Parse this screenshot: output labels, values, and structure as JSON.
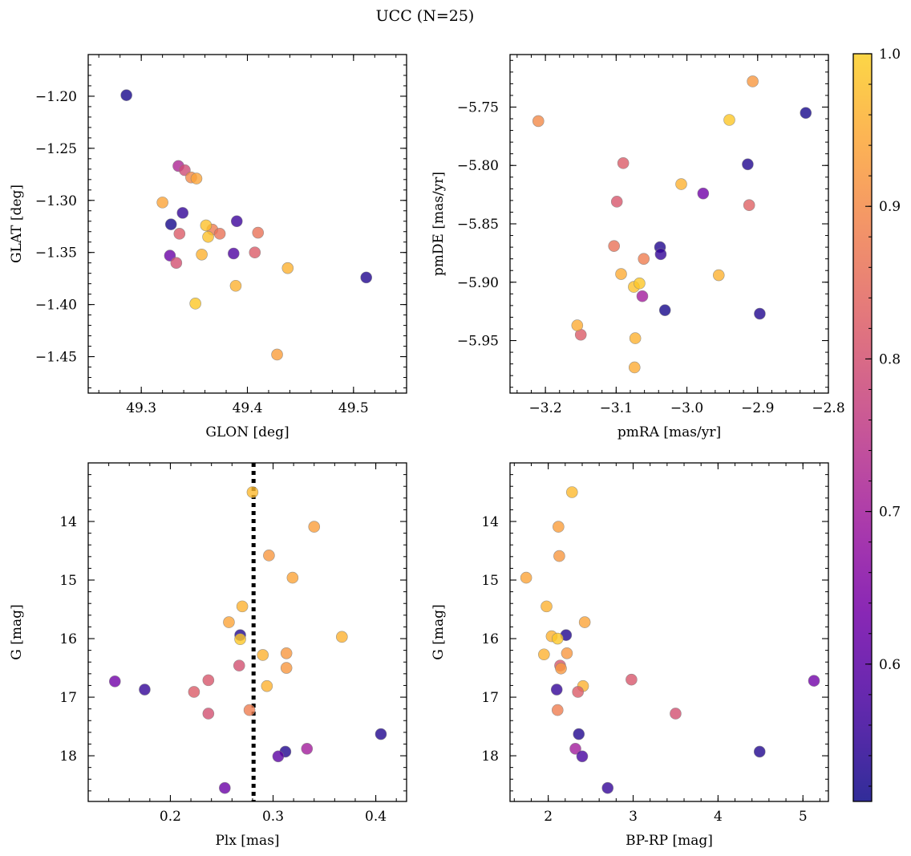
{
  "figure": {
    "suptitle": "UCC (N=25)"
  },
  "colorbar": {
    "ticks": [
      0.6,
      0.7,
      0.8,
      0.9,
      1.0
    ],
    "tick_labels": [
      "0.6",
      "0.7",
      "0.8",
      "0.9",
      "1.0"
    ],
    "range": [
      0.51,
      1.0
    ],
    "colormap": "plasma",
    "colormap_range": [
      0.0,
      0.9
    ],
    "colormap_stops": [
      "#0d0887",
      "#46039f",
      "#7201a8",
      "#9c179e",
      "#bd3786",
      "#d8576b",
      "#ed7953",
      "#fb9f3a",
      "#fdca26",
      "#f0f921"
    ],
    "marker_alpha": 0.8,
    "marker_edge_color": "#808080"
  },
  "dashed_line": {
    "color": "#000000",
    "style": "dotted"
  },
  "chart_data": [
    {
      "type": "scatter",
      "name": "glon-glat",
      "title": "",
      "xlabel": "GLON [deg]",
      "ylabel": "GLAT [deg]",
      "xlim": [
        49.25,
        49.55
      ],
      "ylim": [
        -1.485,
        -1.16
      ],
      "y_inverted": false,
      "xticks": [
        49.3,
        49.4,
        49.5
      ],
      "xtick_labels": [
        "49.3",
        "49.4",
        "49.5"
      ],
      "yticks": [
        -1.45,
        -1.4,
        -1.35,
        -1.3,
        -1.25,
        -1.2
      ],
      "ytick_labels": [
        "−1.45",
        "−1.40",
        "−1.35",
        "−1.30",
        "−1.25",
        "−1.20"
      ],
      "points": [
        {
          "x": 49.286,
          "y": -1.199,
          "c": 0.52
        },
        {
          "x": 49.512,
          "y": -1.374,
          "c": 0.53
        },
        {
          "x": 49.328,
          "y": -1.323,
          "c": 0.52
        },
        {
          "x": 49.339,
          "y": -1.312,
          "c": 0.55
        },
        {
          "x": 49.39,
          "y": -1.32,
          "c": 0.56
        },
        {
          "x": 49.387,
          "y": -1.351,
          "c": 0.58
        },
        {
          "x": 49.327,
          "y": -1.353,
          "c": 0.62
        },
        {
          "x": 49.335,
          "y": -1.267,
          "c": 0.72
        },
        {
          "x": 49.341,
          "y": -1.271,
          "c": 0.79
        },
        {
          "x": 49.333,
          "y": -1.36,
          "c": 0.8
        },
        {
          "x": 49.336,
          "y": -1.332,
          "c": 0.82
        },
        {
          "x": 49.407,
          "y": -1.35,
          "c": 0.82
        },
        {
          "x": 49.41,
          "y": -1.331,
          "c": 0.86
        },
        {
          "x": 49.367,
          "y": -1.328,
          "c": 0.88
        },
        {
          "x": 49.374,
          "y": -1.332,
          "c": 0.86
        },
        {
          "x": 49.347,
          "y": -1.278,
          "c": 0.9
        },
        {
          "x": 49.352,
          "y": -1.279,
          "c": 0.94
        },
        {
          "x": 49.32,
          "y": -1.302,
          "c": 0.94
        },
        {
          "x": 49.357,
          "y": -1.352,
          "c": 0.96
        },
        {
          "x": 49.361,
          "y": -1.324,
          "c": 0.98
        },
        {
          "x": 49.363,
          "y": -1.335,
          "c": 0.98
        },
        {
          "x": 49.389,
          "y": -1.382,
          "c": 0.96
        },
        {
          "x": 49.351,
          "y": -1.399,
          "c": 0.99
        },
        {
          "x": 49.438,
          "y": -1.365,
          "c": 0.96
        },
        {
          "x": 49.428,
          "y": -1.448,
          "c": 0.93
        }
      ]
    },
    {
      "type": "scatter",
      "name": "pmra-pmde",
      "title": "",
      "xlabel": "pmRA [mas/yr]",
      "ylabel": "pmDE [mas/yr]",
      "xlim": [
        -3.25,
        -2.8
      ],
      "ylim": [
        -5.995,
        -5.705
      ],
      "y_inverted": false,
      "xticks": [
        -3.2,
        -3.1,
        -3.0,
        -2.9,
        -2.8
      ],
      "xtick_labels": [
        "−3.2",
        "−3.1",
        "−3.0",
        "−2.9",
        "−2.8"
      ],
      "yticks": [
        -5.95,
        -5.9,
        -5.85,
        -5.8,
        -5.75
      ],
      "ytick_labels": [
        "−5.95",
        "−5.90",
        "−5.85",
        "−5.80",
        "−5.75"
      ],
      "points": [
        {
          "x": -2.832,
          "y": -5.755,
          "c": 0.52
        },
        {
          "x": -2.914,
          "y": -5.799,
          "c": 0.53
        },
        {
          "x": -3.038,
          "y": -5.87,
          "c": 0.53
        },
        {
          "x": -3.037,
          "y": -5.876,
          "c": 0.55
        },
        {
          "x": -3.031,
          "y": -5.924,
          "c": 0.52
        },
        {
          "x": -2.897,
          "y": -5.927,
          "c": 0.53
        },
        {
          "x": -2.977,
          "y": -5.824,
          "c": 0.63
        },
        {
          "x": -3.063,
          "y": -5.912,
          "c": 0.7
        },
        {
          "x": -3.09,
          "y": -5.798,
          "c": 0.82
        },
        {
          "x": -3.099,
          "y": -5.831,
          "c": 0.81
        },
        {
          "x": -3.15,
          "y": -5.945,
          "c": 0.82
        },
        {
          "x": -2.912,
          "y": -5.834,
          "c": 0.83
        },
        {
          "x": -3.103,
          "y": -5.869,
          "c": 0.86
        },
        {
          "x": -3.061,
          "y": -5.88,
          "c": 0.88
        },
        {
          "x": -3.21,
          "y": -5.762,
          "c": 0.9
        },
        {
          "x": -2.907,
          "y": -5.728,
          "c": 0.92
        },
        {
          "x": -3.155,
          "y": -5.937,
          "c": 0.95
        },
        {
          "x": -3.093,
          "y": -5.893,
          "c": 0.95
        },
        {
          "x": -3.008,
          "y": -5.816,
          "c": 0.96
        },
        {
          "x": -2.955,
          "y": -5.894,
          "c": 0.96
        },
        {
          "x": -3.073,
          "y": -5.948,
          "c": 0.96
        },
        {
          "x": -3.074,
          "y": -5.973,
          "c": 0.95
        },
        {
          "x": -3.075,
          "y": -5.904,
          "c": 0.98
        },
        {
          "x": -3.067,
          "y": -5.901,
          "c": 0.99
        },
        {
          "x": -2.94,
          "y": -5.761,
          "c": 0.99
        }
      ]
    },
    {
      "type": "scatter",
      "name": "plx-g",
      "title": "",
      "xlabel": "Plx [mas]",
      "ylabel": "G [mag]",
      "xlim": [
        0.12,
        0.43
      ],
      "ylim": [
        18.78,
        13.0
      ],
      "y_inverted": true,
      "vline_x": 0.281,
      "xticks": [
        0.2,
        0.3,
        0.4
      ],
      "xtick_labels": [
        "0.2",
        "0.3",
        "0.4"
      ],
      "yticks": [
        14,
        15,
        16,
        17,
        18
      ],
      "ytick_labels": [
        "14",
        "15",
        "16",
        "17",
        "18"
      ],
      "points": [
        {
          "x": 0.28,
          "y": 13.5,
          "c": 0.97
        },
        {
          "x": 0.34,
          "y": 14.09,
          "c": 0.93
        },
        {
          "x": 0.296,
          "y": 14.58,
          "c": 0.92
        },
        {
          "x": 0.319,
          "y": 14.96,
          "c": 0.94
        },
        {
          "x": 0.27,
          "y": 15.45,
          "c": 0.96
        },
        {
          "x": 0.257,
          "y": 15.72,
          "c": 0.94
        },
        {
          "x": 0.268,
          "y": 15.94,
          "c": 0.53
        },
        {
          "x": 0.268,
          "y": 16.01,
          "c": 0.99
        },
        {
          "x": 0.367,
          "y": 15.97,
          "c": 0.96
        },
        {
          "x": 0.313,
          "y": 16.25,
          "c": 0.92
        },
        {
          "x": 0.29,
          "y": 16.28,
          "c": 0.96
        },
        {
          "x": 0.313,
          "y": 16.5,
          "c": 0.92
        },
        {
          "x": 0.267,
          "y": 16.46,
          "c": 0.8
        },
        {
          "x": 0.237,
          "y": 16.71,
          "c": 0.81
        },
        {
          "x": 0.146,
          "y": 16.73,
          "c": 0.63
        },
        {
          "x": 0.294,
          "y": 16.81,
          "c": 0.96
        },
        {
          "x": 0.175,
          "y": 16.87,
          "c": 0.55
        },
        {
          "x": 0.223,
          "y": 16.91,
          "c": 0.82
        },
        {
          "x": 0.277,
          "y": 17.22,
          "c": 0.88
        },
        {
          "x": 0.237,
          "y": 17.28,
          "c": 0.8
        },
        {
          "x": 0.405,
          "y": 17.63,
          "c": 0.53
        },
        {
          "x": 0.312,
          "y": 17.93,
          "c": 0.53
        },
        {
          "x": 0.333,
          "y": 17.88,
          "c": 0.7
        },
        {
          "x": 0.305,
          "y": 18.01,
          "c": 0.6
        },
        {
          "x": 0.253,
          "y": 18.55,
          "c": 0.62
        }
      ]
    },
    {
      "type": "scatter",
      "name": "bprp-g",
      "title": "",
      "xlabel": "BP-RP [mag]",
      "ylabel": "G [mag]",
      "xlim": [
        1.55,
        5.3
      ],
      "ylim": [
        18.78,
        13.0
      ],
      "y_inverted": true,
      "xticks": [
        2,
        3,
        4,
        5
      ],
      "xtick_labels": [
        "2",
        "3",
        "4",
        "5"
      ],
      "yticks": [
        14,
        15,
        16,
        17,
        18
      ],
      "ytick_labels": [
        "14",
        "15",
        "16",
        "17",
        "18"
      ],
      "points": [
        {
          "x": 2.28,
          "y": 13.5,
          "c": 0.97
        },
        {
          "x": 2.12,
          "y": 14.09,
          "c": 0.93
        },
        {
          "x": 2.13,
          "y": 14.59,
          "c": 0.92
        },
        {
          "x": 1.74,
          "y": 14.96,
          "c": 0.94
        },
        {
          "x": 1.98,
          "y": 15.45,
          "c": 0.96
        },
        {
          "x": 2.43,
          "y": 15.72,
          "c": 0.94
        },
        {
          "x": 2.21,
          "y": 15.94,
          "c": 0.53
        },
        {
          "x": 2.04,
          "y": 15.96,
          "c": 0.96
        },
        {
          "x": 2.11,
          "y": 16.0,
          "c": 0.99
        },
        {
          "x": 1.95,
          "y": 16.27,
          "c": 0.96
        },
        {
          "x": 2.22,
          "y": 16.25,
          "c": 0.92
        },
        {
          "x": 2.14,
          "y": 16.46,
          "c": 0.81
        },
        {
          "x": 2.15,
          "y": 16.51,
          "c": 0.92
        },
        {
          "x": 2.41,
          "y": 16.81,
          "c": 0.96
        },
        {
          "x": 2.98,
          "y": 16.7,
          "c": 0.81
        },
        {
          "x": 5.13,
          "y": 16.72,
          "c": 0.63
        },
        {
          "x": 2.1,
          "y": 16.87,
          "c": 0.55
        },
        {
          "x": 2.35,
          "y": 16.91,
          "c": 0.82
        },
        {
          "x": 2.11,
          "y": 17.22,
          "c": 0.88
        },
        {
          "x": 3.5,
          "y": 17.28,
          "c": 0.8
        },
        {
          "x": 2.36,
          "y": 17.63,
          "c": 0.53
        },
        {
          "x": 2.32,
          "y": 17.88,
          "c": 0.7
        },
        {
          "x": 4.49,
          "y": 17.93,
          "c": 0.53
        },
        {
          "x": 2.4,
          "y": 18.01,
          "c": 0.57
        },
        {
          "x": 2.7,
          "y": 18.55,
          "c": 0.55
        }
      ]
    }
  ]
}
